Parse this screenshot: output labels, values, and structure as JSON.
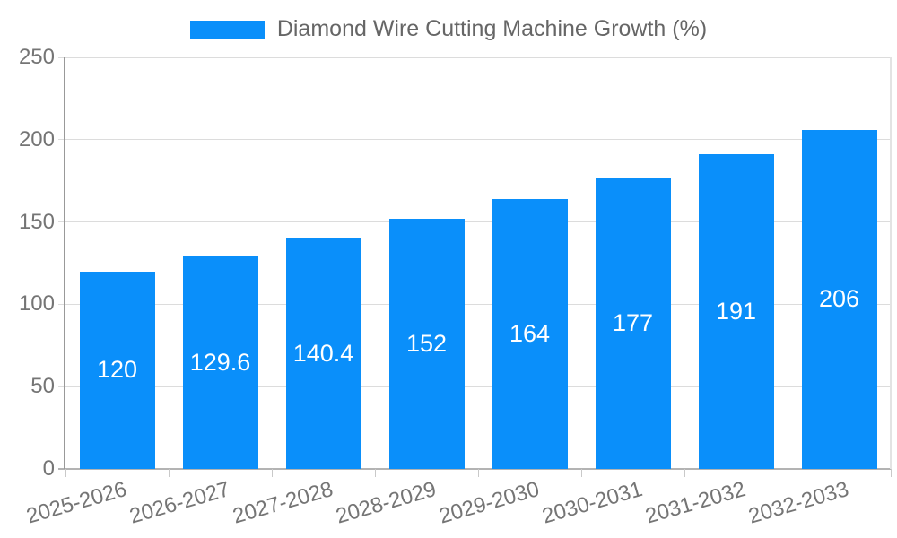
{
  "chart_data": {
    "type": "bar",
    "legend": "Diamond Wire Cutting Machine Growth (%)",
    "legend_position": "top-center",
    "categories": [
      "2025-2026",
      "2026-2027",
      "2027-2028",
      "2028-2029",
      "2029-2030",
      "2030-2031",
      "2031-2032",
      "2032-2033"
    ],
    "values": [
      120,
      129.6,
      140.4,
      152,
      164,
      177,
      191,
      206
    ],
    "value_labels": [
      "120",
      "129.6",
      "140.4",
      "152",
      "164",
      "177",
      "191",
      "206"
    ],
    "ylim": [
      0,
      250
    ],
    "yticks": [
      0,
      50,
      100,
      150,
      200,
      250
    ],
    "grid": true,
    "colors": {
      "bar": "#0a8ffa",
      "value_label": "#ffffff",
      "axis_text": "#757575",
      "legend_text": "#666666",
      "grid_line": "#dcdcdc",
      "y_axis_line": "#999999",
      "x_axis_line": "#b3b3b3",
      "plot_border": "#e3e3e3",
      "tick": "#c9c9c9",
      "background": "#ffffff"
    }
  }
}
